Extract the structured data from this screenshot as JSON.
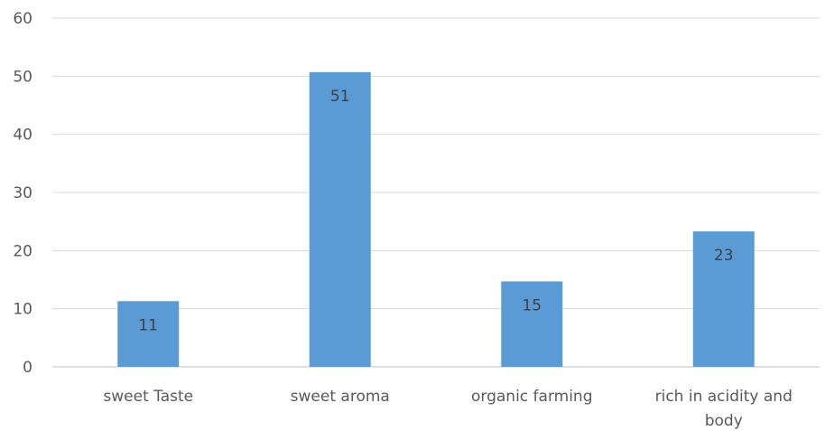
{
  "chart_data": {
    "type": "bar",
    "categories": [
      "sweet Taste",
      "sweet aroma",
      "organic farming",
      "rich in acidity and body"
    ],
    "values": [
      11.3,
      50.7,
      14.7,
      23.3
    ],
    "data_labels": [
      "11",
      "51",
      "15",
      "23"
    ],
    "yticks": [
      0,
      10,
      20,
      30,
      40,
      50,
      60
    ],
    "ylim": [
      0,
      60
    ],
    "grid": true,
    "legend": "none",
    "bar_color": "#5b9bd5"
  }
}
